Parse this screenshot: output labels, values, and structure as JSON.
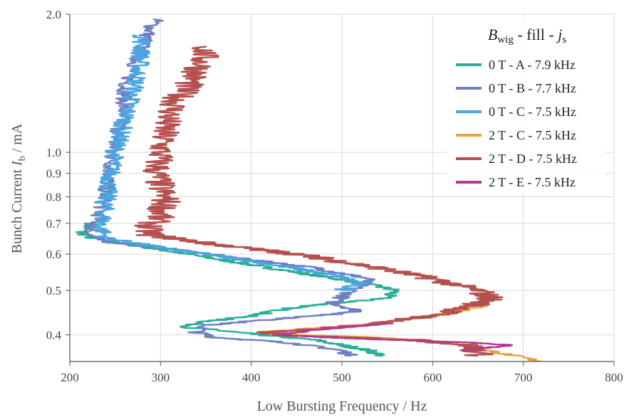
{
  "chart_data": {
    "type": "line",
    "xlabel": "Low Bursting Frequency / Hz",
    "ylabel": "Bunch Current",
    "ylabel_symbol": "I",
    "ylabel_subscript": "b",
    "ylabel_unit": " / mA",
    "xlim": [
      200,
      800
    ],
    "ylim": [
      0.35,
      2.0
    ],
    "y_scale": "log",
    "grid": true,
    "x_ticks": [
      200,
      300,
      400,
      500,
      600,
      700,
      800
    ],
    "x_tick_labels": [
      "200",
      "300",
      "400",
      "500",
      "600",
      "700",
      "800"
    ],
    "y_ticks": [
      0.4,
      0.5,
      0.6,
      0.7,
      0.8,
      0.9,
      1.0,
      2.0
    ],
    "y_tick_labels": [
      "0.4",
      "0.5",
      "0.6",
      "0.7",
      "0.8",
      "0.9",
      "1.0",
      "2.0"
    ],
    "legend": {
      "position": "top-right",
      "title_main": "B",
      "title_sub": "wig",
      "title_rest": " - fill - ",
      "title_j": "j",
      "title_j_sub": "s"
    },
    "series": [
      {
        "name": "0 T - A - 7.9 kHz",
        "color": "#2aae96",
        "noise": 12,
        "points": [
          [
            225,
            0.7
          ],
          [
            212,
            0.67
          ],
          [
            225,
            0.65
          ],
          [
            265,
            0.63
          ],
          [
            330,
            0.6
          ],
          [
            420,
            0.56
          ],
          [
            520,
            0.52
          ],
          [
            560,
            0.5
          ],
          [
            545,
            0.48
          ],
          [
            450,
            0.46
          ],
          [
            400,
            0.44
          ],
          [
            340,
            0.425
          ],
          [
            330,
            0.415
          ],
          [
            360,
            0.41
          ],
          [
            410,
            0.4
          ],
          [
            470,
            0.39
          ],
          [
            530,
            0.37
          ],
          [
            545,
            0.36
          ]
        ]
      },
      {
        "name": "0 T - B - 7.7 kHz",
        "color": "#6f7fc4",
        "noise": 12,
        "points": [
          [
            295,
            1.95
          ],
          [
            285,
            1.8
          ],
          [
            275,
            1.6
          ],
          [
            262,
            1.4
          ],
          [
            258,
            1.2
          ],
          [
            250,
            1.05
          ],
          [
            244,
            0.9
          ],
          [
            238,
            0.8
          ],
          [
            232,
            0.72
          ],
          [
            222,
            0.66
          ],
          [
            235,
            0.64
          ],
          [
            300,
            0.62
          ],
          [
            380,
            0.59
          ],
          [
            470,
            0.56
          ],
          [
            530,
            0.53
          ],
          [
            505,
            0.49
          ],
          [
            490,
            0.47
          ],
          [
            520,
            0.45
          ],
          [
            470,
            0.44
          ],
          [
            350,
            0.42
          ],
          [
            340,
            0.405
          ],
          [
            360,
            0.395
          ],
          [
            440,
            0.385
          ],
          [
            500,
            0.37
          ],
          [
            510,
            0.36
          ]
        ]
      },
      {
        "name": "0 T - C - 7.5 kHz",
        "color": "#4aa5e0",
        "noise": 14,
        "points": [
          [
            280,
            1.8
          ],
          [
            278,
            1.6
          ],
          [
            272,
            1.4
          ],
          [
            262,
            1.2
          ],
          [
            250,
            1.0
          ],
          [
            243,
            0.85
          ],
          [
            238,
            0.75
          ],
          [
            235,
            0.68
          ],
          [
            240,
            0.65
          ],
          [
            300,
            0.62
          ],
          [
            400,
            0.58
          ],
          [
            490,
            0.54
          ],
          [
            520,
            0.52
          ],
          [
            500,
            0.5
          ]
        ]
      },
      {
        "name": "2 T - C - 7.5 kHz",
        "color": "#e6a23c",
        "noise": 10,
        "points": [
          [
            672,
            0.48
          ],
          [
            650,
            0.46
          ],
          [
            600,
            0.44
          ],
          [
            520,
            0.42
          ],
          [
            440,
            0.41
          ],
          [
            410,
            0.405
          ],
          [
            450,
            0.4
          ],
          [
            540,
            0.395
          ],
          [
            620,
            0.385
          ],
          [
            660,
            0.37
          ],
          [
            690,
            0.36
          ],
          [
            720,
            0.35
          ]
        ]
      },
      {
        "name": "2 T - D - 7.5 kHz",
        "color": "#b5504e",
        "noise": 22,
        "points": [
          [
            350,
            1.7
          ],
          [
            345,
            1.55
          ],
          [
            330,
            1.4
          ],
          [
            318,
            1.3
          ],
          [
            305,
            1.15
          ],
          [
            300,
            1.0
          ],
          [
            295,
            0.9
          ],
          [
            300,
            0.84
          ],
          [
            306,
            0.78
          ],
          [
            300,
            0.73
          ],
          [
            285,
            0.68
          ],
          [
            290,
            0.66
          ],
          [
            360,
            0.63
          ],
          [
            450,
            0.6
          ],
          [
            540,
            0.56
          ],
          [
            600,
            0.53
          ],
          [
            650,
            0.5
          ],
          [
            665,
            0.48
          ],
          [
            640,
            0.46
          ],
          [
            600,
            0.44
          ],
          [
            520,
            0.42
          ],
          [
            460,
            0.41
          ],
          [
            420,
            0.405
          ],
          [
            430,
            0.4
          ],
          [
            500,
            0.395
          ],
          [
            580,
            0.39
          ],
          [
            640,
            0.38
          ],
          [
            650,
            0.37
          ],
          [
            650,
            0.36
          ]
        ]
      },
      {
        "name": "2 T - E - 7.5 kHz",
        "color": "#b33794",
        "noise": 8,
        "points": [
          [
            560,
            0.425
          ],
          [
            470,
            0.41
          ],
          [
            430,
            0.4
          ],
          [
            480,
            0.395
          ],
          [
            560,
            0.39
          ],
          [
            640,
            0.385
          ],
          [
            690,
            0.38
          ],
          [
            660,
            0.375
          ],
          [
            630,
            0.37
          ]
        ]
      }
    ]
  }
}
